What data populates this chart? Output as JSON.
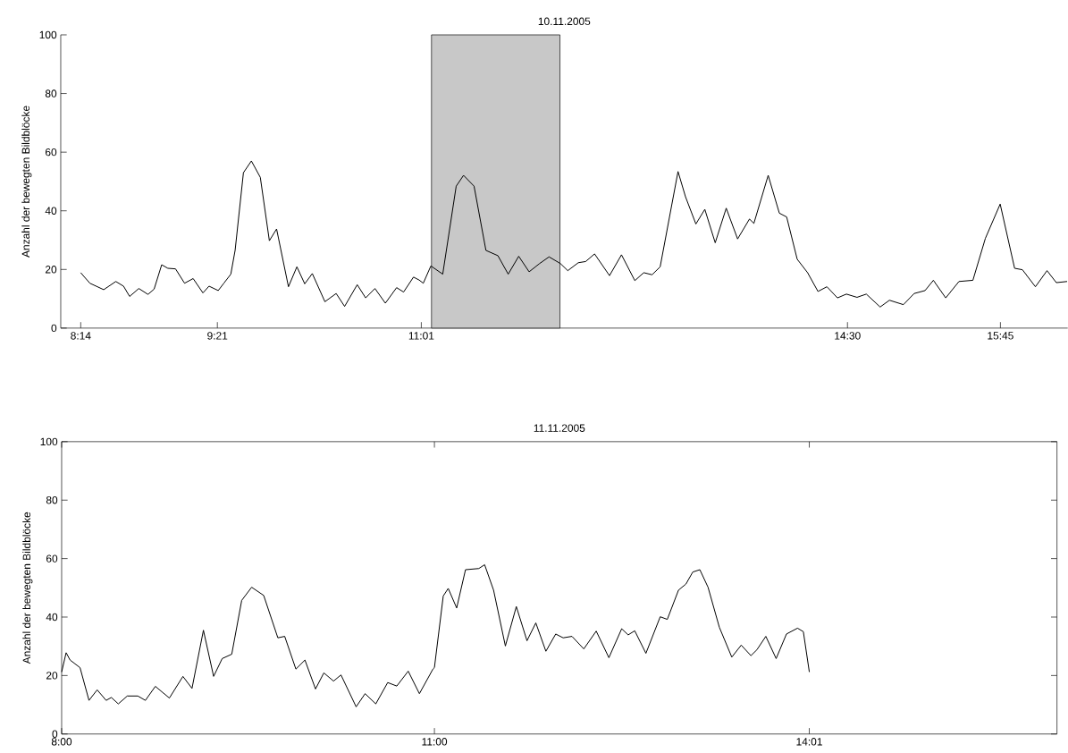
{
  "chart_data": [
    {
      "type": "line",
      "title": "10.11.2005",
      "ylabel": "Anzahl der bewegten Bildblöcke",
      "color": "#000000",
      "x": [
        8.233,
        8.308,
        8.421,
        8.52,
        8.583,
        8.633,
        8.708,
        8.783,
        8.833,
        8.895,
        8.945,
        9.008,
        9.082,
        9.152,
        9.232,
        9.282,
        9.357,
        9.403,
        9.46,
        9.495,
        9.563,
        9.628,
        9.701,
        9.775,
        9.834,
        9.931,
        10.0,
        10.064,
        10.126,
        10.229,
        10.321,
        10.39,
        10.493,
        10.562,
        10.638,
        10.723,
        10.815,
        10.872,
        10.953,
        10.999,
        11.033,
        11.095,
        11.192,
        11.302,
        11.362,
        11.448,
        11.545,
        11.643,
        11.727,
        11.813,
        11.898,
        11.983,
        12.061,
        12.154,
        12.214,
        12.3,
        12.36,
        12.433,
        12.555,
        12.653,
        12.762,
        12.835,
        12.903,
        12.969,
        13.115,
        13.176,
        13.261,
        13.334,
        13.419,
        13.509,
        13.602,
        13.699,
        13.735,
        13.852,
        13.943,
        14.003,
        14.089,
        14.174,
        14.259,
        14.332,
        14.418,
        14.491,
        14.578,
        14.654,
        14.767,
        14.843,
        14.957,
        15.045,
        15.134,
        15.202,
        15.303,
        15.411,
        15.525,
        15.627,
        15.748,
        15.866,
        15.93,
        16.036,
        16.131,
        16.207,
        16.295
      ],
      "values": [
        18.9,
        15.3,
        13.1,
        15.9,
        14.3,
        10.8,
        13.5,
        11.5,
        13.3,
        21.6,
        20.4,
        20.2,
        15.3,
        16.9,
        12.0,
        14.3,
        12.8,
        15.3,
        18.4,
        26.5,
        53.0,
        57.0,
        51.4,
        29.8,
        33.8,
        14.1,
        20.9,
        15.1,
        18.6,
        9.0,
        11.8,
        7.4,
        14.8,
        10.3,
        13.5,
        8.5,
        13.8,
        12.3,
        17.4,
        16.4,
        15.3,
        21.2,
        18.4,
        48.4,
        52.1,
        48.4,
        26.5,
        24.7,
        18.4,
        24.5,
        19.2,
        22.0,
        24.3,
        22.0,
        19.6,
        22.3,
        22.7,
        25.3,
        17.9,
        25.0,
        16.2,
        18.9,
        18.2,
        20.9,
        53.4,
        44.8,
        35.5,
        40.5,
        29.1,
        40.9,
        30.4,
        37.2,
        35.7,
        52.1,
        39.2,
        37.9,
        23.5,
        18.9,
        12.5,
        14.1,
        10.3,
        11.6,
        10.5,
        11.6,
        7.2,
        9.5,
        8.0,
        11.8,
        12.8,
        16.3,
        10.3,
        15.9,
        16.3,
        30.6,
        42.3,
        20.4,
        19.9,
        14.1,
        19.6,
        15.5,
        15.9
      ],
      "xlim": [
        8.07,
        16.3
      ],
      "ylim": [
        0,
        100
      ],
      "xticks": [
        {
          "value": 8.2333,
          "label": "8:14"
        },
        {
          "value": 9.35,
          "label": "9:21"
        },
        {
          "value": 11.0167,
          "label": "11:01"
        },
        {
          "value": 14.5,
          "label": "14:30"
        },
        {
          "value": 15.75,
          "label": "15:45"
        }
      ],
      "yticks": [
        0,
        20,
        40,
        60,
        80,
        100
      ],
      "bands": [
        {
          "axis": "x",
          "from": 11.1,
          "to": 12.15,
          "color": "#c8c8c8"
        }
      ]
    },
    {
      "type": "line",
      "title": "11.11.2005",
      "ylabel": "Anzahl der bewegten Bildblöcke",
      "color": "#000000",
      "x": [
        8.0,
        8.036,
        8.068,
        8.148,
        8.22,
        8.286,
        8.358,
        8.4,
        8.456,
        8.528,
        8.613,
        8.674,
        8.754,
        8.867,
        8.976,
        9.049,
        9.141,
        9.223,
        9.292,
        9.369,
        9.449,
        9.529,
        9.626,
        9.74,
        9.795,
        9.885,
        9.958,
        10.043,
        10.11,
        10.188,
        10.248,
        10.37,
        10.442,
        10.528,
        10.624,
        10.697,
        10.789,
        10.879,
        10.988,
        11.0,
        11.071,
        11.111,
        11.179,
        11.25,
        11.357,
        11.404,
        11.476,
        11.571,
        11.659,
        11.745,
        11.816,
        11.897,
        11.976,
        12.036,
        12.107,
        12.202,
        12.302,
        12.404,
        12.507,
        12.559,
        12.612,
        12.702,
        12.817,
        12.874,
        12.964,
        13.024,
        13.079,
        13.136,
        13.202,
        13.293,
        13.393,
        13.469,
        13.547,
        13.595,
        13.667,
        13.75,
        13.833,
        13.922,
        13.969,
        14.017
      ],
      "values": [
        21.2,
        27.8,
        25.3,
        22.7,
        11.5,
        15.1,
        11.5,
        12.5,
        10.3,
        13.0,
        13.0,
        11.5,
        16.3,
        12.3,
        19.7,
        15.6,
        35.5,
        19.7,
        25.8,
        27.3,
        45.7,
        50.2,
        47.4,
        32.9,
        33.4,
        22.2,
        25.3,
        15.4,
        20.9,
        18.1,
        20.2,
        9.3,
        13.8,
        10.3,
        17.6,
        16.4,
        21.5,
        13.8,
        22.2,
        22.7,
        47.2,
        49.8,
        43.1,
        56.2,
        56.6,
        57.9,
        49.2,
        30.1,
        43.6,
        31.9,
        38.0,
        28.3,
        34.2,
        32.9,
        33.4,
        29.1,
        35.2,
        26.1,
        36.0,
        33.9,
        35.3,
        27.6,
        40.1,
        39.2,
        49.2,
        51.3,
        55.4,
        56.2,
        50.2,
        36.5,
        26.3,
        30.4,
        26.8,
        28.8,
        33.4,
        25.8,
        34.2,
        36.2,
        35.0,
        21.2
      ],
      "xlim": [
        8,
        16.01
      ],
      "ylim": [
        0,
        100
      ],
      "xticks": [
        {
          "value": 8,
          "label": "8:00"
        },
        {
          "value": 11,
          "label": "11:00"
        },
        {
          "value": 14.0167,
          "label": "14:01"
        }
      ],
      "yticks": [
        0,
        20,
        40,
        60,
        80,
        100
      ]
    }
  ]
}
